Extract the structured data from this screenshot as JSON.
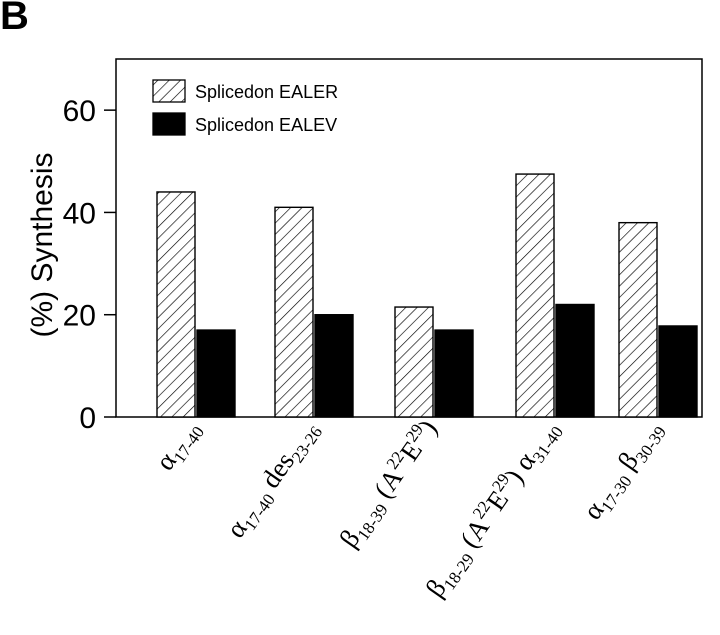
{
  "panel_label": "B",
  "chart_data": {
    "type": "bar",
    "ylabel": "(%) Synthesis",
    "ylim": [
      0,
      70
    ],
    "yticks": [
      0,
      20,
      40,
      60
    ],
    "grid": false,
    "legend_position": "top-left",
    "categories": [
      {
        "parts": [
          [
            "α",
            "normal"
          ],
          [
            "17-40",
            "sub"
          ]
        ]
      },
      {
        "parts": [
          [
            "α",
            "normal"
          ],
          [
            "17-40",
            "sub"
          ],
          [
            " des",
            "normal"
          ],
          [
            "23-26",
            "sub"
          ]
        ]
      },
      {
        "parts": [
          [
            "β",
            "normal"
          ],
          [
            "18-39",
            "sub"
          ],
          [
            " (A",
            "normal"
          ],
          [
            "22",
            "sup"
          ],
          [
            "E",
            "normal"
          ],
          [
            "29",
            "sup"
          ],
          [
            ")",
            "normal"
          ]
        ]
      },
      {
        "parts": [
          [
            "β",
            "normal"
          ],
          [
            "18-29",
            "sub"
          ],
          [
            " (A",
            "normal"
          ],
          [
            "22",
            "sup"
          ],
          [
            "E",
            "normal"
          ],
          [
            "29",
            "sup"
          ],
          [
            ") α",
            "normal"
          ],
          [
            "31-40",
            "sub"
          ]
        ]
      },
      {
        "parts": [
          [
            "α",
            "normal"
          ],
          [
            "17-30",
            "sub"
          ],
          [
            " β",
            "normal"
          ],
          [
            "30-39",
            "sub"
          ]
        ]
      }
    ],
    "series": [
      {
        "name": "Splicedon EALER",
        "pattern": "hatched",
        "values": [
          44,
          41,
          21.5,
          47.5,
          38
        ]
      },
      {
        "name": "Splicedon EALEV",
        "pattern": "solid",
        "color": "#000000",
        "values": [
          17,
          20,
          17,
          22,
          17.8
        ]
      }
    ]
  }
}
